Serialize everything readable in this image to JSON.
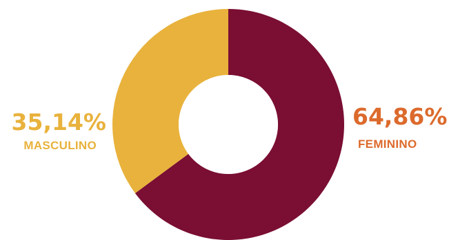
{
  "chart_data": {
    "type": "pie",
    "donut": true,
    "categories": [
      "FEMININO",
      "MASCULINO"
    ],
    "values": [
      64.86,
      35.14
    ],
    "labels": [
      "64,86%",
      "35,14%"
    ],
    "colors": [
      "#7a0e33",
      "#e8b23c"
    ],
    "label_colors": [
      "#dc6a2c",
      "#e8b23c"
    ],
    "background": "#ffffff"
  }
}
